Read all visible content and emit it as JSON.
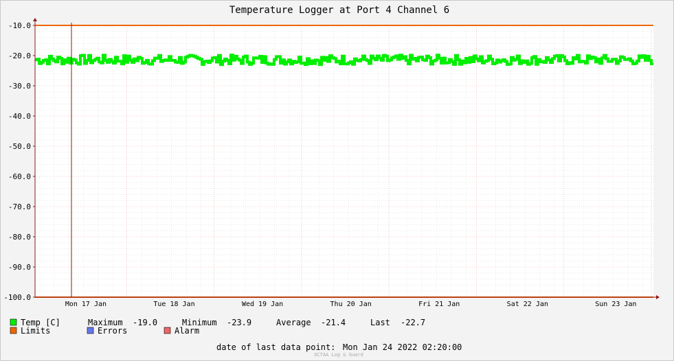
{
  "chart_data": {
    "type": "line",
    "title": "Temperature Logger at Port 4 Channel 6",
    "ylim": [
      -100,
      -10
    ],
    "y_ticks": [
      "-10.0",
      "-20.0",
      "-30.0",
      "-40.0",
      "-50.0",
      "-60.0",
      "-70.0",
      "-80.0",
      "-90.0",
      "-100.0"
    ],
    "x_ticks": [
      "Mon 17 Jan",
      "Tue 18 Jan",
      "Wed 19 Jan",
      "Thu 20 Jan",
      "Fri 21 Jan",
      "Sat 22 Jan",
      "Sun 23 Jan"
    ],
    "series": [
      {
        "name": "Temp [C]",
        "color": "#00ee00",
        "min": -23.9,
        "max": -19.0,
        "avg": -21.4,
        "last": -22.7
      },
      {
        "name": "Limits",
        "color": "#ee6600",
        "value": -10.0
      },
      {
        "name": "Limits",
        "color": "#ee6600",
        "value": -100.0
      }
    ],
    "grid": true
  },
  "legend": {
    "temp_label": "Temp [C]",
    "maximum_label": "Maximum",
    "maximum_value": "-19.0",
    "minimum_label": "Minimum",
    "minimum_value": "-23.9",
    "average_label": "Average",
    "average_value": "-21.4",
    "last_label": "Last",
    "last_value": "-22.7",
    "limits_label": "Limits",
    "errors_label": "Errors",
    "alarm_label": "Alarm",
    "temp_color": "#00ee00",
    "limits_color": "#ee6600",
    "errors_color": "#6677ee",
    "alarm_color": "#ee6666"
  },
  "footer": {
    "last_point_label": "date of last data point:",
    "last_point_value": "Mon Jan 24 2022 02:20:00",
    "watermark": "OCTAA Log & Guard"
  }
}
